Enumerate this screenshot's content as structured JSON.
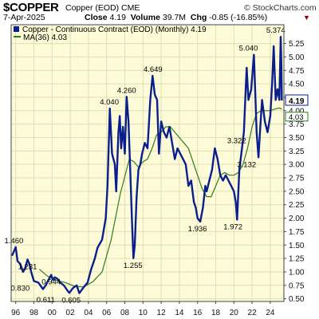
{
  "header": {
    "symbol": "$COPPER",
    "subtitle": "Copper (EOD) CME",
    "brand": "© StockCharts.com",
    "date": "7-Apr-2025",
    "close_label": "Close",
    "close_value": "4.19",
    "volume_label": "Volume",
    "volume_value": "39.7M",
    "chg_label": "Chg",
    "chg_value": "-0.85 (-16.85%)",
    "down_icon": "down-triangle-icon",
    "down_symbol": "▼"
  },
  "legend": [
    {
      "icon": "bar-series-icon",
      "text": "Copper - Continuous Contract (EOD) (Monthly) 4.19"
    },
    {
      "icon": "ma-line-icon",
      "text": "MA(36) 4.03"
    }
  ],
  "colors": {
    "plot_bg": "#fdfbd8",
    "price": "#0a1e8c",
    "ma": "#2e7d1e",
    "grid": "#e2dfb4",
    "down": "#8b0000"
  },
  "chart_data": {
    "type": "line",
    "x": [
      1995.6,
      1996.0,
      1996.2,
      1996.5,
      1996.8,
      1997.0,
      1997.3,
      1997.5,
      1997.7,
      1998.0,
      1998.5,
      1999.0,
      1999.3,
      1999.6,
      1999.9,
      2000.1,
      2000.3,
      2000.6,
      2000.9,
      2001.3,
      2001.7,
      2001.9,
      2002.3,
      2002.7,
      2003.0,
      2003.5,
      2003.9,
      2004.3,
      2004.7,
      2005.0,
      2005.5,
      2005.9,
      2006.1,
      2006.35,
      2006.6,
      2006.9,
      2007.05,
      2007.3,
      2007.45,
      2007.6,
      2007.8,
      2008.0,
      2008.2,
      2008.4,
      2008.6,
      2008.8,
      2008.95,
      2009.1,
      2009.3,
      2009.5,
      2009.7,
      2009.9,
      2010.2,
      2010.5,
      2010.8,
      2011.05,
      2011.3,
      2011.55,
      2011.75,
      2012.0,
      2012.3,
      2012.6,
      2012.9,
      2013.2,
      2013.5,
      2013.8,
      2014.1,
      2014.4,
      2014.7,
      2015.0,
      2015.3,
      2015.6,
      2015.8,
      2016.0,
      2016.3,
      2016.6,
      2016.85,
      2017.0,
      2017.3,
      2017.6,
      2017.9,
      2018.2,
      2018.5,
      2018.8,
      2019.1,
      2019.4,
      2019.7,
      2020.0,
      2020.2,
      2020.35,
      2020.6,
      2020.9,
      2021.1,
      2021.3,
      2021.4,
      2021.6,
      2021.9,
      2022.2,
      2022.5,
      2022.7,
      2022.9,
      2023.1,
      2023.4,
      2023.7,
      2024.0,
      2024.2,
      2024.38,
      2024.6,
      2024.8,
      2025.0,
      2025.15,
      2025.22,
      2025.27
    ],
    "values": [
      1.3,
      1.46,
      1.2,
      1.15,
      1.0,
      1.05,
      1.231,
      1.15,
      1.0,
      0.83,
      0.8,
      0.68,
      0.75,
      0.85,
      0.944,
      0.85,
      0.9,
      0.87,
      0.8,
      0.75,
      0.65,
      0.611,
      0.7,
      0.75,
      0.605,
      0.72,
      0.8,
      1.05,
      1.25,
      1.45,
      1.6,
      2.0,
      2.6,
      4.04,
      3.2,
      3.0,
      2.5,
      3.6,
      3.9,
      3.3,
      3.7,
      3.2,
      4.26,
      3.8,
      2.9,
      1.9,
      1.255,
      1.5,
      2.4,
      2.9,
      3.0,
      3.2,
      3.4,
      3.3,
      4.2,
      4.649,
      4.3,
      4.2,
      3.2,
      3.8,
      3.6,
      3.5,
      3.7,
      3.4,
      3.1,
      3.3,
      3.2,
      3.1,
      3.0,
      2.6,
      2.7,
      2.3,
      2.2,
      2.0,
      1.936,
      2.2,
      2.6,
      2.5,
      2.7,
      2.9,
      3.3,
      3.1,
      2.8,
      2.7,
      2.8,
      2.7,
      2.6,
      2.5,
      2.3,
      1.972,
      2.9,
      3.322,
      3.6,
      4.4,
      4.8,
      4.2,
      4.4,
      5.04,
      3.6,
      3.132,
      3.7,
      4.2,
      3.8,
      3.6,
      3.9,
      4.5,
      5.2,
      4.2,
      4.4,
      4.2,
      5.374,
      4.9,
      4.19
    ],
    "ma_x": [
      1998.6,
      1999.5,
      2000.5,
      2001.5,
      2002.5,
      2003.5,
      2004.5,
      2005.5,
      2006.5,
      2007.5,
      2008.5,
      2009.0,
      2009.5,
      2010.0,
      2010.5,
      2011.0,
      2011.5,
      2012.0,
      2012.5,
      2013.0,
      2013.5,
      2014.0,
      2014.5,
      2015.0,
      2015.5,
      2016.0,
      2016.5,
      2017.0,
      2017.5,
      2018.0,
      2018.5,
      2019.0,
      2019.5,
      2020.0,
      2020.5,
      2021.0,
      2021.5,
      2022.0,
      2022.5,
      2023.0,
      2023.5,
      2024.0,
      2024.5,
      2025.0,
      2025.27
    ],
    "ma_values": [
      1.05,
      0.92,
      0.84,
      0.8,
      0.73,
      0.72,
      0.82,
      1.0,
      1.6,
      2.45,
      3.1,
      3.05,
      2.95,
      3.05,
      3.1,
      3.3,
      3.55,
      3.6,
      3.7,
      3.7,
      3.6,
      3.5,
      3.4,
      3.3,
      3.05,
      2.8,
      2.55,
      2.4,
      2.4,
      2.6,
      2.8,
      2.85,
      2.8,
      2.8,
      2.85,
      3.0,
      3.3,
      3.7,
      3.95,
      4.0,
      4.0,
      4.0,
      4.03,
      4.05,
      4.03
    ],
    "annotations": [
      {
        "x": 1995.8,
        "y": 1.46,
        "label": "1.460"
      },
      {
        "x": 1997.3,
        "y": 1.231,
        "label": "1.231"
      },
      {
        "x": 1996.5,
        "y": 0.83,
        "label": "0.830"
      },
      {
        "x": 1999.9,
        "y": 0.944,
        "label": "0.944"
      },
      {
        "x": 1999.3,
        "y": 0.611,
        "label": "0.611"
      },
      {
        "x": 2002.1,
        "y": 0.605,
        "label": "0.605"
      },
      {
        "x": 2006.3,
        "y": 4.04,
        "label": "4.040"
      },
      {
        "x": 2008.2,
        "y": 4.26,
        "label": "4.260"
      },
      {
        "x": 2008.9,
        "y": 1.255,
        "label": "1.255"
      },
      {
        "x": 2011.1,
        "y": 4.649,
        "label": "4.649"
      },
      {
        "x": 2016.0,
        "y": 1.936,
        "label": "1.936"
      },
      {
        "x": 2019.9,
        "y": 1.972,
        "label": "1.972"
      },
      {
        "x": 2020.3,
        "y": 3.322,
        "label": "3.322"
      },
      {
        "x": 2021.4,
        "y": 3.132,
        "label": "3.132"
      },
      {
        "x": 2021.6,
        "y": 5.04,
        "label": "5.040"
      },
      {
        "x": 2024.6,
        "y": 5.374,
        "label": "5.374"
      }
    ],
    "xlim": [
      1995.5,
      2025.5
    ],
    "ylim": [
      0.45,
      5.6
    ],
    "x_ticks": [
      1996,
      1998,
      2000,
      2002,
      2004,
      2006,
      2008,
      2010,
      2012,
      2014,
      2016,
      2018,
      2020,
      2022,
      2024
    ],
    "x_tick_labels": [
      "96",
      "98",
      "00",
      "02",
      "04",
      "06",
      "08",
      "10",
      "12",
      "14",
      "16",
      "18",
      "20",
      "22",
      "24"
    ],
    "y_ticks": [
      0.5,
      0.75,
      1.0,
      1.25,
      1.5,
      1.75,
      2.0,
      2.25,
      2.5,
      2.75,
      3.0,
      3.25,
      3.5,
      3.75,
      4.0,
      4.25,
      4.5,
      4.75,
      5.0,
      5.25
    ],
    "y_tick_labels": [
      "0.50",
      "0.75",
      "1.00",
      "1.25",
      "1.50",
      "1.75",
      "2.00",
      "2.25",
      "2.50",
      "2.75",
      "3.00",
      "3.25",
      "3.50",
      "3.75",
      "4.00",
      "4.25",
      "4.50",
      "4.75",
      "5.00",
      "5.25"
    ],
    "last_price_tag": {
      "value": 4.19,
      "label": "4.19"
    },
    "ma_tag": {
      "value": 4.03,
      "label": "4.03"
    },
    "grid": true,
    "legend_position": "top-left"
  }
}
